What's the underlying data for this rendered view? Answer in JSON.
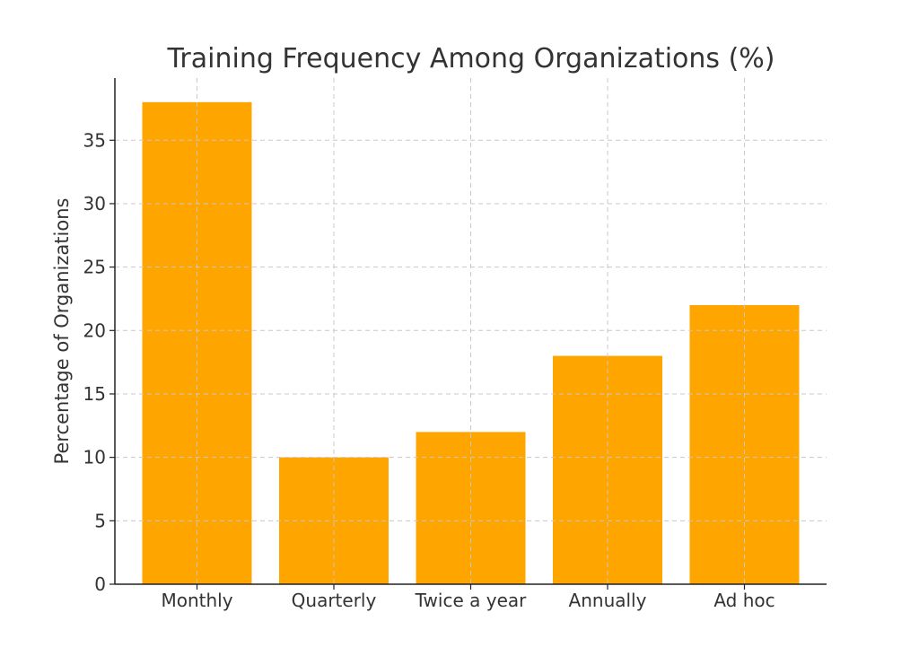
{
  "chart_data": {
    "type": "bar",
    "title": "Training Frequency Among Organizations (%)",
    "xlabel": "",
    "ylabel": "Percentage of Organizations",
    "categories": [
      "Monthly",
      "Quarterly",
      "Twice a year",
      "Annually",
      "Ad hoc"
    ],
    "values": [
      38,
      10,
      12,
      18,
      22
    ],
    "yticks": [
      0,
      5,
      10,
      15,
      20,
      25,
      30,
      35
    ],
    "ylim": [
      0,
      39.9
    ],
    "grid": true,
    "bar_color": "#FFA500"
  }
}
